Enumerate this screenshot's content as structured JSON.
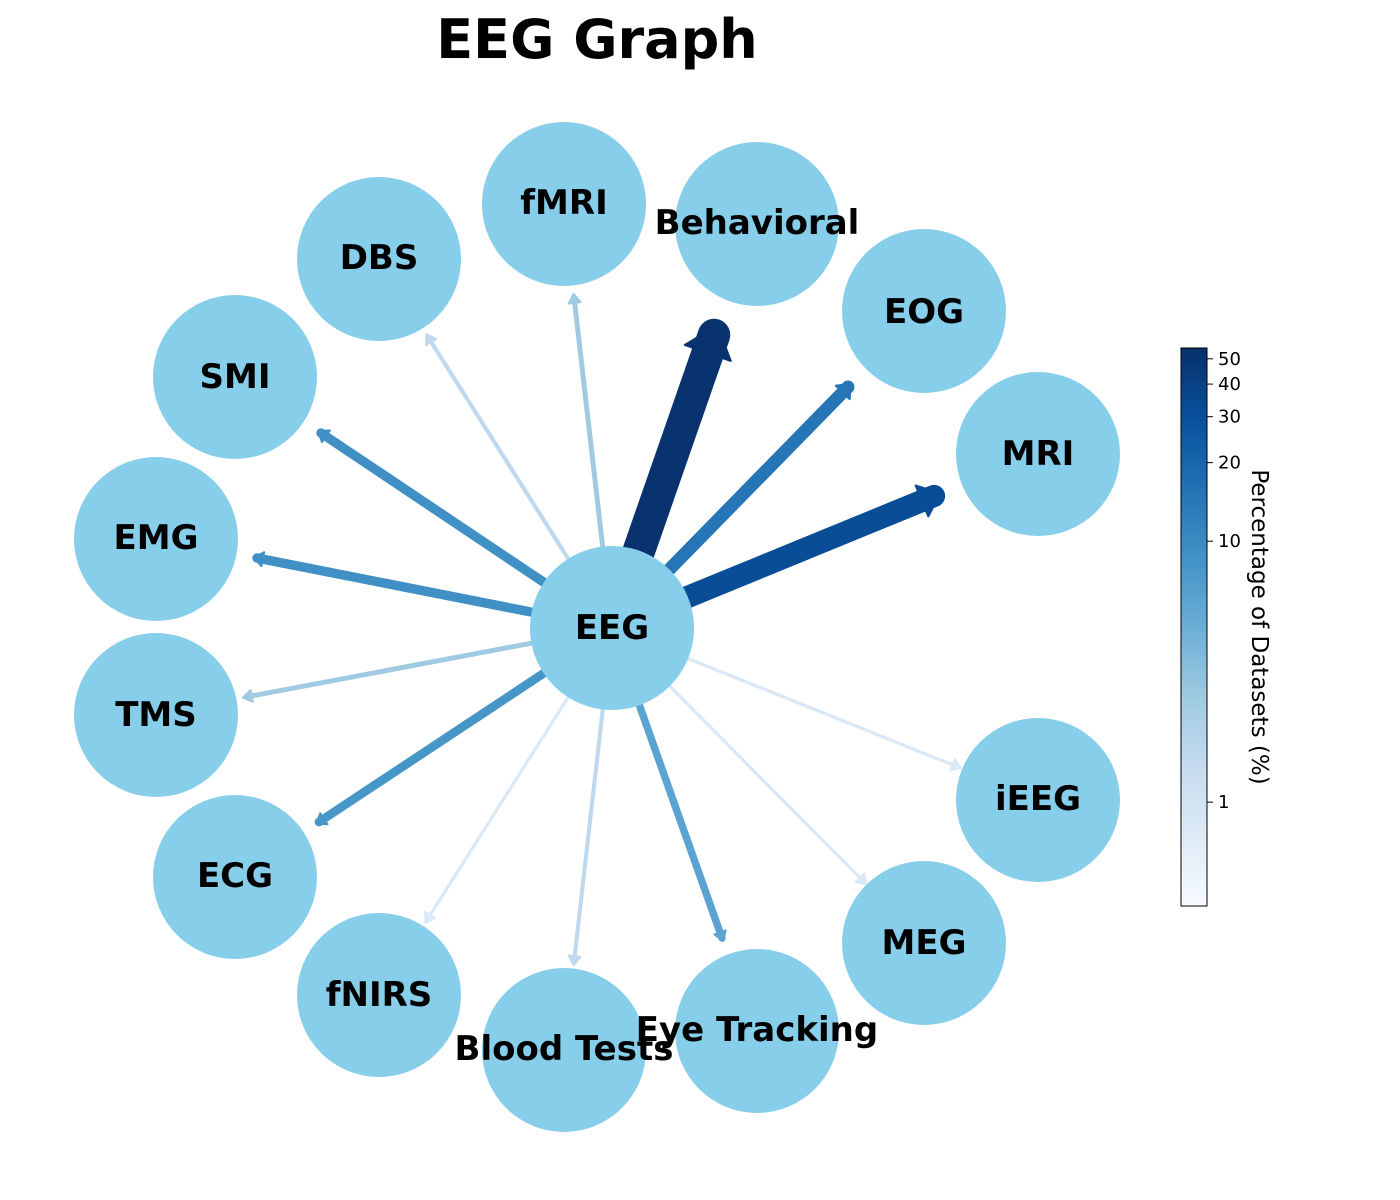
{
  "title": "EEG Graph",
  "center_node": "EEG",
  "node_color": "#87CEEB",
  "edges": [
    {
      "target": "Behavioral",
      "percentage": 52
    },
    {
      "target": "MRI",
      "percentage": 32
    },
    {
      "target": "EOG",
      "percentage": 15
    },
    {
      "target": "SMI",
      "percentage": 9
    },
    {
      "target": "EMG",
      "percentage": 9
    },
    {
      "target": "ECG",
      "percentage": 8
    },
    {
      "target": "Eye Tracking",
      "percentage": 6
    },
    {
      "target": "fMRI",
      "percentage": 2.5
    },
    {
      "target": "TMS",
      "percentage": 2.5
    },
    {
      "target": "DBS",
      "percentage": 1.5
    },
    {
      "target": "Blood Tests",
      "percentage": 1.5
    },
    {
      "target": "fNIRS",
      "percentage": 0.8
    },
    {
      "target": "iEEG",
      "percentage": 0.8
    },
    {
      "target": "MEG",
      "percentage": 0.8
    }
  ],
  "colorbar": {
    "label": "Percentage of Datasets (%)",
    "scale": "log",
    "range": [
      0.4,
      55
    ],
    "ticks": [
      {
        "value": 1,
        "label": "1"
      },
      {
        "value": 10,
        "label": "10"
      },
      {
        "value": 20,
        "label": "20"
      },
      {
        "value": 30,
        "label": "30"
      },
      {
        "value": 40,
        "label": "40"
      },
      {
        "value": 50,
        "label": "50"
      }
    ],
    "colormap": [
      "#f7fbff",
      "#deebf7",
      "#c6dbef",
      "#9ecae1",
      "#6baed6",
      "#4292c6",
      "#2171b5",
      "#08519c",
      "#08306b"
    ]
  }
}
